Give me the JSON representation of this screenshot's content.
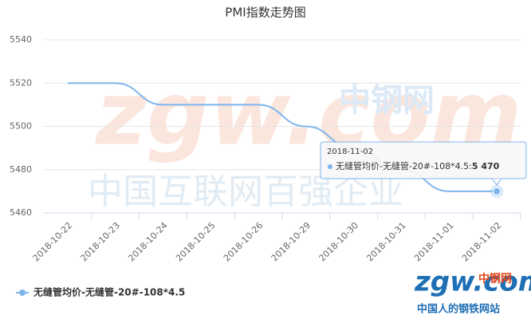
{
  "chart_data": {
    "type": "line",
    "title": "PMI指数走势图",
    "categories": [
      "2018-10-22",
      "2018-10-23",
      "2018-10-24",
      "2018-10-25",
      "2018-10-26",
      "2018-10-29",
      "2018-10-30",
      "2018-10-31",
      "2018-11-01",
      "2018-11-02"
    ],
    "series": [
      {
        "name": "无缝管均价-无缝管-20#-108*4.5",
        "color": "#7cb5ec",
        "values": [
          5520,
          5520,
          5510,
          5510,
          5510,
          5500,
          5490,
          5480,
          5470,
          5470
        ],
        "value_labels": [
          null,
          null,
          null,
          null,
          null,
          null,
          null,
          null,
          null,
          "5 470"
        ]
      }
    ],
    "ylim": [
      5460,
      5540
    ],
    "yticks": [
      5460,
      5480,
      5500,
      5520,
      5540
    ],
    "grid": true,
    "legend": "bottom-left",
    "watermarks": [
      "zgw.com",
      "中钢网",
      "中国互联网百强企业",
      "中国人的钢铁网站"
    ]
  }
}
